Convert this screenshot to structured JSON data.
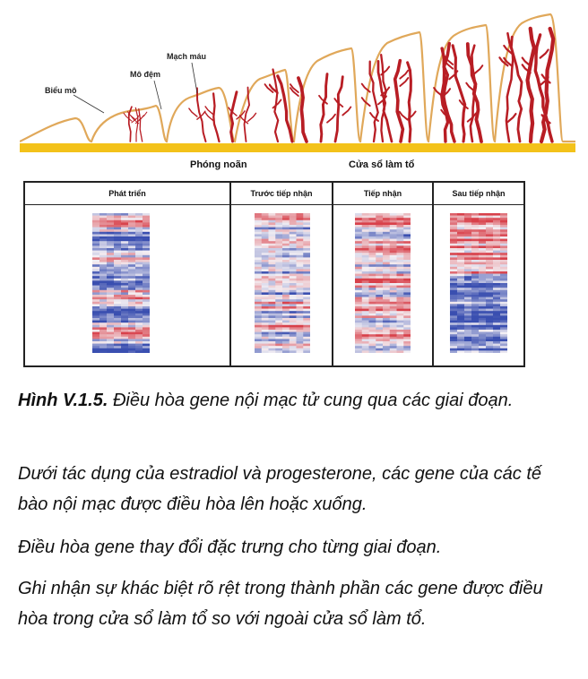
{
  "diagram": {
    "labels": {
      "epithelium": "Biểu mô",
      "stroma": "Mô đệm",
      "vessels": "Mạch máu",
      "ovulation": "Phóng noãn",
      "window": "Cửa sổ làm tổ"
    },
    "colors": {
      "surface": "#e0a85a",
      "vessel": "#b81d24",
      "base": "#f3c21a",
      "heat_red": "#d8404a",
      "heat_blue": "#3a4fb0",
      "heat_white": "#f4f0f4"
    }
  },
  "heatmap_panel": {
    "columns": [
      {
        "label": "Phát triển",
        "profile": "mixed-blue-dominant"
      },
      {
        "label": "Trước tiếp nhận",
        "profile": "mixed"
      },
      {
        "label": "Tiếp nhận",
        "profile": "mixed-red-dominant"
      },
      {
        "label": "Sau tiếp nhận",
        "profile": "red-top-blue-bottom"
      }
    ]
  },
  "caption": {
    "title_bold": "Hình V.1.5.",
    "title_rest": " Điều hòa gene nội mạc tử cung qua các giai đoạn.",
    "p1": "Dưới tác dụng của estradiol và progesterone, các gene của các tế bào nội mạc được điều hòa lên hoặc xuống.",
    "p2": "Điều hòa gene thay đổi đặc trưng cho từng giai đoạn.",
    "p3": "Ghi nhận sự khác biệt rõ rệt trong thành phần các gene được điều hòa trong cửa sổ làm tổ so với ngoài cửa sổ làm tổ."
  }
}
